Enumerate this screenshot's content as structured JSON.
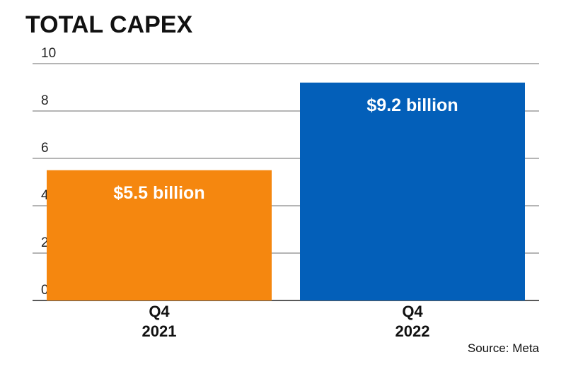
{
  "chart_data": {
    "type": "bar",
    "title": "TOTAL CAPEX",
    "categories": [
      [
        "Q4",
        "2021"
      ],
      [
        "Q4",
        "2022"
      ]
    ],
    "values": [
      5.5,
      9.2
    ],
    "data_labels": [
      "$5.5 billion",
      "$9.2 billion"
    ],
    "colors": [
      "#f5870f",
      "#035fb9"
    ],
    "ylim": [
      0,
      10
    ],
    "yticks": [
      0,
      2,
      4,
      6,
      8,
      10
    ],
    "xlabel": "",
    "ylabel": "",
    "grid": true,
    "legend": "none",
    "source": "Source:  Meta"
  }
}
